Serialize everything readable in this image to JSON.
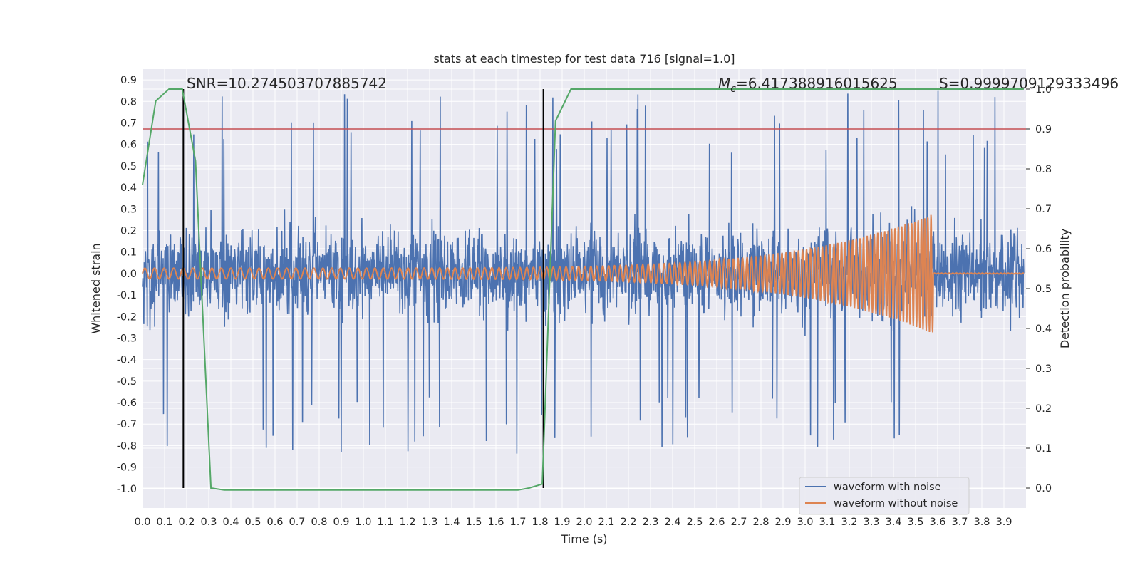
{
  "chart_data": {
    "type": "line",
    "title": "stats at each timestep for test data 716 [signal=1.0]",
    "xlabel": "Time (s)",
    "ylabel": "Whitened strain",
    "y2label": "Detection probability",
    "xlim": [
      0.0,
      4.0
    ],
    "ylim": [
      -1.09,
      0.95
    ],
    "y2lim": [
      -0.05,
      1.05
    ],
    "x_ticks": [
      "0.0",
      "0.1",
      "0.2",
      "0.3",
      "0.4",
      "0.5",
      "0.6",
      "0.7",
      "0.8",
      "0.9",
      "1.0",
      "1.1",
      "1.2",
      "1.3",
      "1.4",
      "1.5",
      "1.6",
      "1.7",
      "1.8",
      "1.9",
      "2.0",
      "2.1",
      "2.2",
      "2.3",
      "2.4",
      "2.5",
      "2.6",
      "2.7",
      "2.8",
      "2.9",
      "3.0",
      "3.1",
      "3.2",
      "3.3",
      "3.4",
      "3.5",
      "3.6",
      "3.7",
      "3.8",
      "3.9"
    ],
    "y_ticks": [
      "0.9",
      "0.8",
      "0.7",
      "0.6",
      "0.5",
      "0.4",
      "0.3",
      "0.2",
      "0.1",
      "0.0",
      "-0.1",
      "-0.2",
      "-0.3",
      "-0.4",
      "-0.5",
      "-0.6",
      "-0.7",
      "-0.8",
      "-0.9",
      "-1.0"
    ],
    "y2_ticks": [
      "1.0",
      "0.9",
      "0.8",
      "0.7",
      "0.6",
      "0.5",
      "0.4",
      "0.3",
      "0.2",
      "0.1",
      "0.0"
    ],
    "grid": true,
    "legend_position": "lower-right",
    "annotations": {
      "snr": "SNR=10.274503707885742",
      "mc_symbol": "M",
      "mc_sub": "c",
      "mc_value": "=6.417388916015625",
      "s": "S=0.9999709129333496"
    },
    "series": [
      {
        "name": "waveform with noise",
        "color": "#4c72b0",
        "description": "noisy whitened strain, roughly within -0.5..0.5 with spikes to about ±0.85"
      },
      {
        "name": "waveform without noise",
        "color": "#dd8452",
        "chirp": {
          "amplitude_start": 0.025,
          "amplitude_peak": 0.28,
          "cycles_per_s_start": 23,
          "cycles_per_s_end": 70,
          "merger_time": 3.58
        }
      },
      {
        "name": "",
        "color": "#55a868",
        "axis": "right",
        "x": [
          0.0,
          0.06,
          0.12,
          0.18,
          0.24,
          0.31,
          0.37,
          0.45,
          1.7,
          1.75,
          1.81,
          1.87,
          1.94,
          2.5,
          3.5,
          3.99
        ],
        "y": [
          0.76,
          0.97,
          1.0,
          1.0,
          0.82,
          0.0,
          -0.005,
          -0.005,
          -0.005,
          0.0,
          0.01,
          0.92,
          1.0,
          1.0,
          1.0,
          1.0
        ]
      }
    ],
    "threshold": {
      "value": 0.9,
      "axis": "right",
      "color": "#c44e52"
    },
    "vertical_markers": {
      "x": [
        0.185,
        1.815
      ],
      "color": "#000000"
    }
  }
}
